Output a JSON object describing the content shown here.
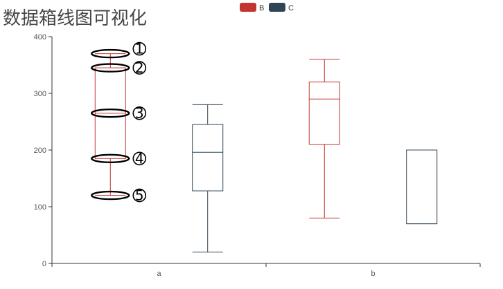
{
  "title": "数据箱线图可视化",
  "chart_data": {
    "type": "boxplot",
    "title": "数据箱线图可视化",
    "categories": [
      "a",
      "b"
    ],
    "ylim": [
      0,
      400
    ],
    "yticks": [
      0,
      100,
      200,
      300,
      400
    ],
    "grid": false,
    "legend_position": "top-center",
    "series": [
      {
        "name": "B",
        "color": "#c23531",
        "boxes": [
          {
            "min": 120,
            "q1": 185,
            "median": 265,
            "q3": 345,
            "max": 370
          },
          {
            "min": 80,
            "q1": 210,
            "median": 290,
            "q3": 320,
            "max": 360
          }
        ]
      },
      {
        "name": "C",
        "color": "#2f4554",
        "boxes": [
          {
            "min": 20,
            "q1": 128,
            "median": 196,
            "q3": 245,
            "max": 280
          },
          {
            "min": 70,
            "q1": 70,
            "median": 200,
            "q3": 200,
            "max": 200
          }
        ]
      }
    ],
    "annotations": [
      {
        "label": "1",
        "value": 370
      },
      {
        "label": "2",
        "value": 345
      },
      {
        "label": "3",
        "value": 265
      },
      {
        "label": "4",
        "value": 185
      },
      {
        "label": "5",
        "value": 120
      }
    ]
  }
}
